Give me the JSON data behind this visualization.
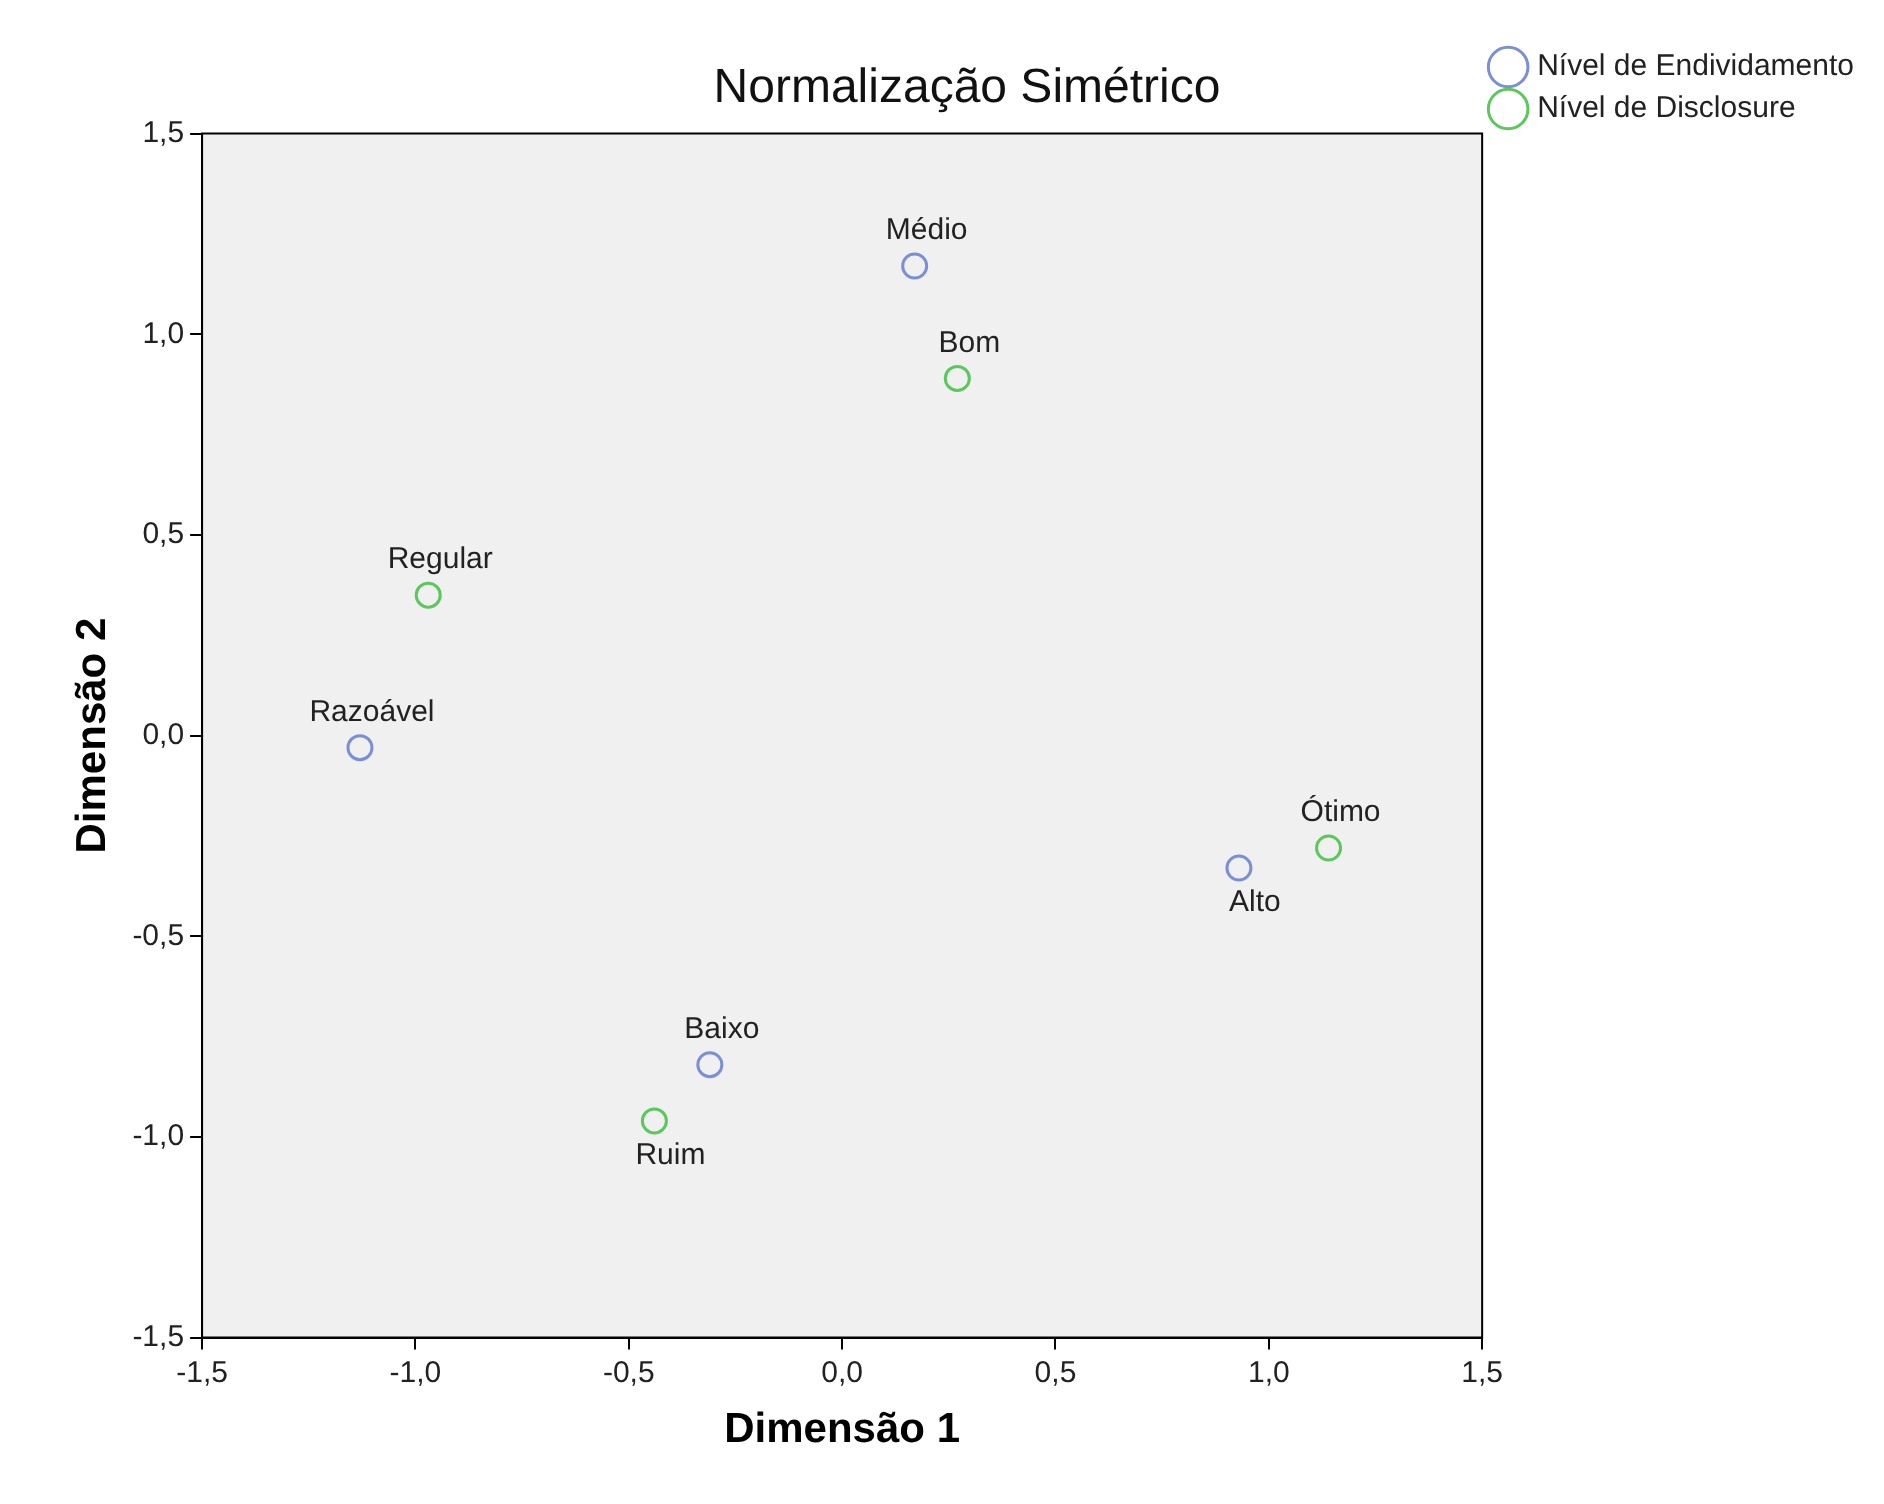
{
  "chart_data": {
    "type": "scatter",
    "title": "Normalização Simétrico",
    "xlabel": "Dimensão 1",
    "ylabel": "Dimensão 2",
    "series": [
      {
        "name": "Nível de Endividamento",
        "color": "#7b8fd6",
        "x": [
          0.17,
          -1.13,
          0.93,
          -0.31
        ],
        "values": [
          1.17,
          -0.03,
          -0.33,
          -0.82
        ]
      },
      {
        "name": "Nível de Disclosure",
        "color": "#5cc85c",
        "x": [
          0.27,
          -0.97,
          1.14,
          -0.44
        ],
        "values": [
          0.89,
          0.35,
          -0.28,
          -0.96
        ]
      }
    ],
    "annotations": [
      {
        "text": "Médio",
        "x": 0.17,
        "y": 1.17
      },
      {
        "text": "Razoável",
        "x": -1.13,
        "y": -0.03
      },
      {
        "text": "Alto",
        "x": 0.93,
        "y": -0.33
      },
      {
        "text": "Baixo",
        "x": -0.31,
        "y": -0.82
      },
      {
        "text": "Bom",
        "x": 0.27,
        "y": 0.89
      },
      {
        "text": "Regular",
        "x": -0.97,
        "y": 0.35
      },
      {
        "text": "Ótimo",
        "x": 1.14,
        "y": -0.28
      },
      {
        "text": "Ruim",
        "x": -0.44,
        "y": -0.96
      }
    ],
    "xlim": [
      -1.5,
      1.5
    ],
    "ylim": [
      -1.5,
      1.5
    ],
    "xticks": [
      {
        "value": -1.5,
        "label": "-1,5"
      },
      {
        "value": -1,
        "label": "-1,0"
      },
      {
        "value": -0.5,
        "label": "-0,5"
      },
      {
        "value": 0,
        "label": "0,0"
      },
      {
        "value": 0.5,
        "label": "0,5"
      },
      {
        "value": 1,
        "label": "1,0"
      },
      {
        "value": 1.5,
        "label": "1,5"
      }
    ],
    "yticks": [
      {
        "value": -1.5,
        "label": "-1,5"
      },
      {
        "value": -1,
        "label": "-1,0"
      },
      {
        "value": -0.5,
        "label": "-0,5"
      },
      {
        "value": 0,
        "label": "0,0"
      },
      {
        "value": 0.5,
        "label": "0,5"
      },
      {
        "value": 1,
        "label": "1,0"
      },
      {
        "value": 1.5,
        "label": "1,5"
      }
    ],
    "grid": false,
    "legend": "top right",
    "marker": "circle"
  }
}
